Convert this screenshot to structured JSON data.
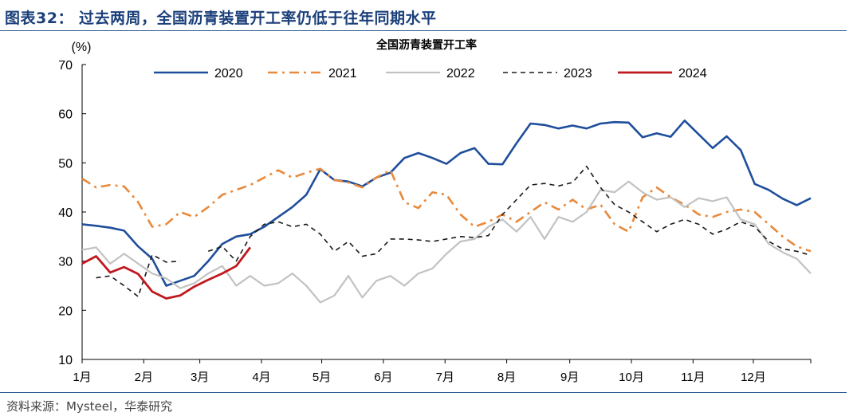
{
  "figure": {
    "title": "图表32：  过去两周，全国沥青装置开工率仍低于往年同期水平",
    "source": "资料来源：Mysteel，华泰研究"
  },
  "chart_data": {
    "type": "line",
    "title": "全国沥青装置开工率",
    "ylabel": "(%)",
    "xlabel": "",
    "ylim": [
      10,
      70
    ],
    "yticks": [
      10,
      20,
      30,
      40,
      50,
      60,
      70
    ],
    "month_labels": [
      "1月",
      "2月",
      "3月",
      "4月",
      "5月",
      "6月",
      "7月",
      "8月",
      "9月",
      "10月",
      "11月",
      "12月"
    ],
    "x_unit": "week of year",
    "xlim": [
      1,
      53
    ],
    "legend_position": "top",
    "series": [
      {
        "name": "2020",
        "color": "#1f4e9c",
        "dash": "solid",
        "width": 2.6,
        "values": [
          37.5,
          37.2,
          36.8,
          36.2,
          33.0,
          30.5,
          25.0,
          26.0,
          27.0,
          30.0,
          33.5,
          35.0,
          35.5,
          37.0,
          39.0,
          41.0,
          43.5,
          48.7,
          46.5,
          46.2,
          45.2,
          47.0,
          48.0,
          51.0,
          52.0,
          51.0,
          49.8,
          52.0,
          53.0,
          49.8,
          49.7,
          54.0,
          58.0,
          57.7,
          57.0,
          57.6,
          57.0,
          58.0,
          58.3,
          58.2,
          55.2,
          56.0,
          55.3,
          58.6,
          55.8,
          53.0,
          55.4,
          52.6,
          45.7,
          44.5,
          42.7,
          41.4,
          42.8
        ]
      },
      {
        "name": "2021",
        "color": "#e8893b",
        "dash": "dashdot",
        "width": 2.6,
        "values": [
          46.8,
          45.0,
          45.5,
          45.2,
          42.0,
          37.0,
          37.5,
          40.0,
          39.0,
          41.0,
          43.5,
          44.5,
          45.5,
          47.0,
          48.5,
          47.0,
          48.0,
          48.8,
          46.5,
          46.0,
          45.0,
          47.0,
          48.5,
          42.0,
          40.8,
          44.0,
          43.5,
          39.5,
          37.0,
          38.0,
          39.5,
          38.0,
          40.0,
          42.0,
          40.5,
          42.5,
          40.5,
          41.5,
          37.5,
          36.0,
          43.0,
          45.0,
          43.0,
          41.5,
          39.5,
          39.0,
          40.0,
          40.5,
          40.0,
          37.5,
          35.0,
          33.0,
          32.0
        ]
      },
      {
        "name": "2022",
        "color": "#c2c2c2",
        "dash": "solid",
        "width": 2.2,
        "values": [
          32.3,
          32.8,
          29.5,
          31.5,
          29.5,
          27.5,
          26.5,
          24.5,
          25.5,
          27.5,
          29.0,
          25.0,
          27.0,
          25.0,
          25.5,
          27.5,
          25.0,
          21.6,
          23.0,
          27.0,
          22.6,
          26.0,
          27.0,
          25.0,
          27.5,
          28.5,
          31.5,
          34.0,
          34.5,
          37.0,
          38.5,
          36.0,
          39.0,
          34.5,
          39.0,
          38.0,
          40.0,
          44.5,
          44.0,
          46.2,
          44.0,
          42.5,
          43.0,
          41.0,
          42.8,
          42.2,
          43.0,
          38.5,
          37.5,
          33.5,
          31.8,
          30.5,
          27.5
        ]
      },
      {
        "name": "2023",
        "color": "#1a1a1a",
        "dash": "dashed",
        "width": 1.6,
        "values": [
          null,
          26.6,
          27.0,
          25.0,
          22.8,
          31.3,
          29.8,
          30.0,
          null,
          32.0,
          33.0,
          30.0,
          35.0,
          37.5,
          38.0,
          37.0,
          37.5,
          35.5,
          32.0,
          34.0,
          31.0,
          31.5,
          34.5,
          34.5,
          34.3,
          34.0,
          34.5,
          35.0,
          34.8,
          35.2,
          39.5,
          42.5,
          45.5,
          45.8,
          45.3,
          46.0,
          49.3,
          45.0,
          41.5,
          40.0,
          38.0,
          36.0,
          37.5,
          38.5,
          37.5,
          35.5,
          36.5,
          38.0,
          37.0,
          34.0,
          32.5,
          32.0,
          31.2
        ]
      },
      {
        "name": "2024",
        "color": "#c0181e",
        "dash": "solid",
        "width": 2.8,
        "values": [
          29.5,
          31.0,
          27.7,
          28.8,
          27.4,
          23.8,
          22.4,
          23.0,
          24.8,
          26.2,
          27.5,
          29.0,
          32.8
        ]
      }
    ]
  }
}
